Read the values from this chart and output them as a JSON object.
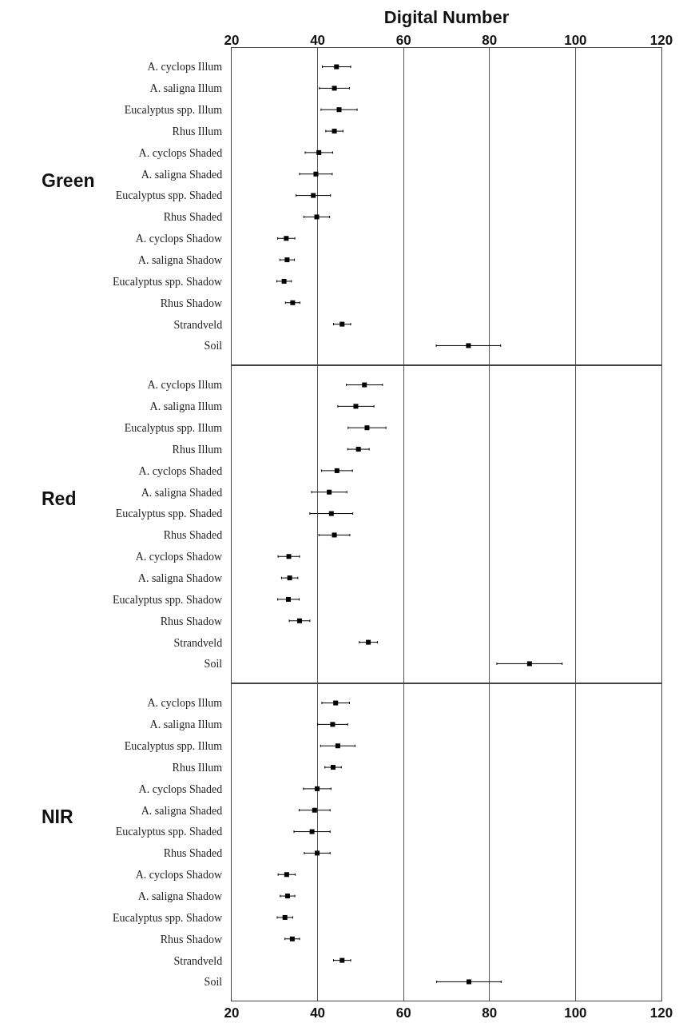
{
  "chart_data": [
    {
      "type": "scatter",
      "orientation": "horizontal",
      "ylabel": "Green",
      "x2label": "Digital Number",
      "categories": [
        "A. cyclops Illum",
        "A. saligna Illum",
        "Eucalyptus spp. Illum",
        "Rhus Illum",
        "A. cyclops Shaded",
        "A. saligna Shaded",
        "Eucalyptus spp. Shaded",
        "Rhus Shaded",
        "A. cyclops Shadow",
        "A. saligna Shadow",
        "Eucalyptus spp. Shadow",
        "Rhus Shadow",
        "Strandveld",
        "Soil"
      ],
      "values": [
        44.4,
        43.9,
        45,
        43.9,
        40.3,
        39.6,
        39,
        39.8,
        32.7,
        32.9,
        32.2,
        34.2,
        45.7,
        75.1
      ],
      "errors": [
        3.3,
        3.5,
        4.2,
        2,
        3.2,
        3.8,
        4,
        3,
        2,
        1.7,
        1.7,
        1.7,
        2,
        7.5
      ],
      "color": "#000000",
      "marker": "square",
      "xlim": [
        20,
        120
      ],
      "xticks": [
        20,
        40,
        60,
        80,
        100,
        120
      ],
      "x2lim": [
        20,
        120
      ],
      "x2ticks": [
        20,
        40,
        60,
        80,
        100,
        120
      ],
      "grid": "x",
      "tick_labels": "y"
    },
    {
      "type": "scatter",
      "orientation": "horizontal",
      "ylabel": "Red",
      "categories": [
        "A. cyclops Illum",
        "A. saligna Illum",
        "Eucalyptus spp. Illum",
        "Rhus Illum",
        "A. cyclops Shaded",
        "A. saligna Shaded",
        "Eucalyptus spp. Shaded",
        "Rhus Shaded",
        "A. cyclops Shadow",
        "A. saligna Shadow",
        "Eucalyptus spp. Shadow",
        "Rhus Shadow",
        "Strandveld",
        "Soil"
      ],
      "values": [
        50.9,
        48.9,
        51.5,
        49.5,
        44.5,
        42.7,
        43.2,
        43.9,
        33.3,
        33.5,
        33.2,
        35.8,
        51.8,
        89.3
      ],
      "errors": [
        4.2,
        4.2,
        4.4,
        2.5,
        3.6,
        4.1,
        5,
        3.6,
        2.5,
        1.9,
        2.5,
        2.4,
        2.1,
        7.6
      ],
      "color": "#000000",
      "marker": "square",
      "xlim": [
        20,
        120
      ],
      "xticks": [
        20,
        40,
        60,
        80,
        100,
        120
      ],
      "grid": "x",
      "tick_labels": "y"
    },
    {
      "type": "scatter",
      "orientation": "horizontal",
      "ylabel": "NIR",
      "categories": [
        "A. cyclops Illum",
        "A. saligna Illum",
        "Eucalyptus spp. Illum",
        "Rhus Illum",
        "A. cyclops Shaded",
        "A. saligna Shaded",
        "Eucalyptus spp. Shaded",
        "Rhus Shaded",
        "A. cyclops Shadow",
        "A. saligna Shadow",
        "Eucalyptus spp. Shadow",
        "Rhus Shadow",
        "Strandveld",
        "Soil"
      ],
      "values": [
        44.2,
        43.5,
        44.7,
        43.6,
        39.9,
        39.3,
        38.7,
        39.9,
        32.8,
        33,
        32.4,
        34.1,
        45.7,
        75.2
      ],
      "errors": [
        3.2,
        3.5,
        4,
        1.9,
        3.2,
        3.6,
        4.2,
        3,
        2,
        1.7,
        1.8,
        1.7,
        2,
        7.5
      ],
      "color": "#000000",
      "marker": "square",
      "xlim": [
        20,
        120
      ],
      "xticks": [
        20,
        40,
        60,
        80,
        100,
        120
      ],
      "grid": "x"
    }
  ]
}
